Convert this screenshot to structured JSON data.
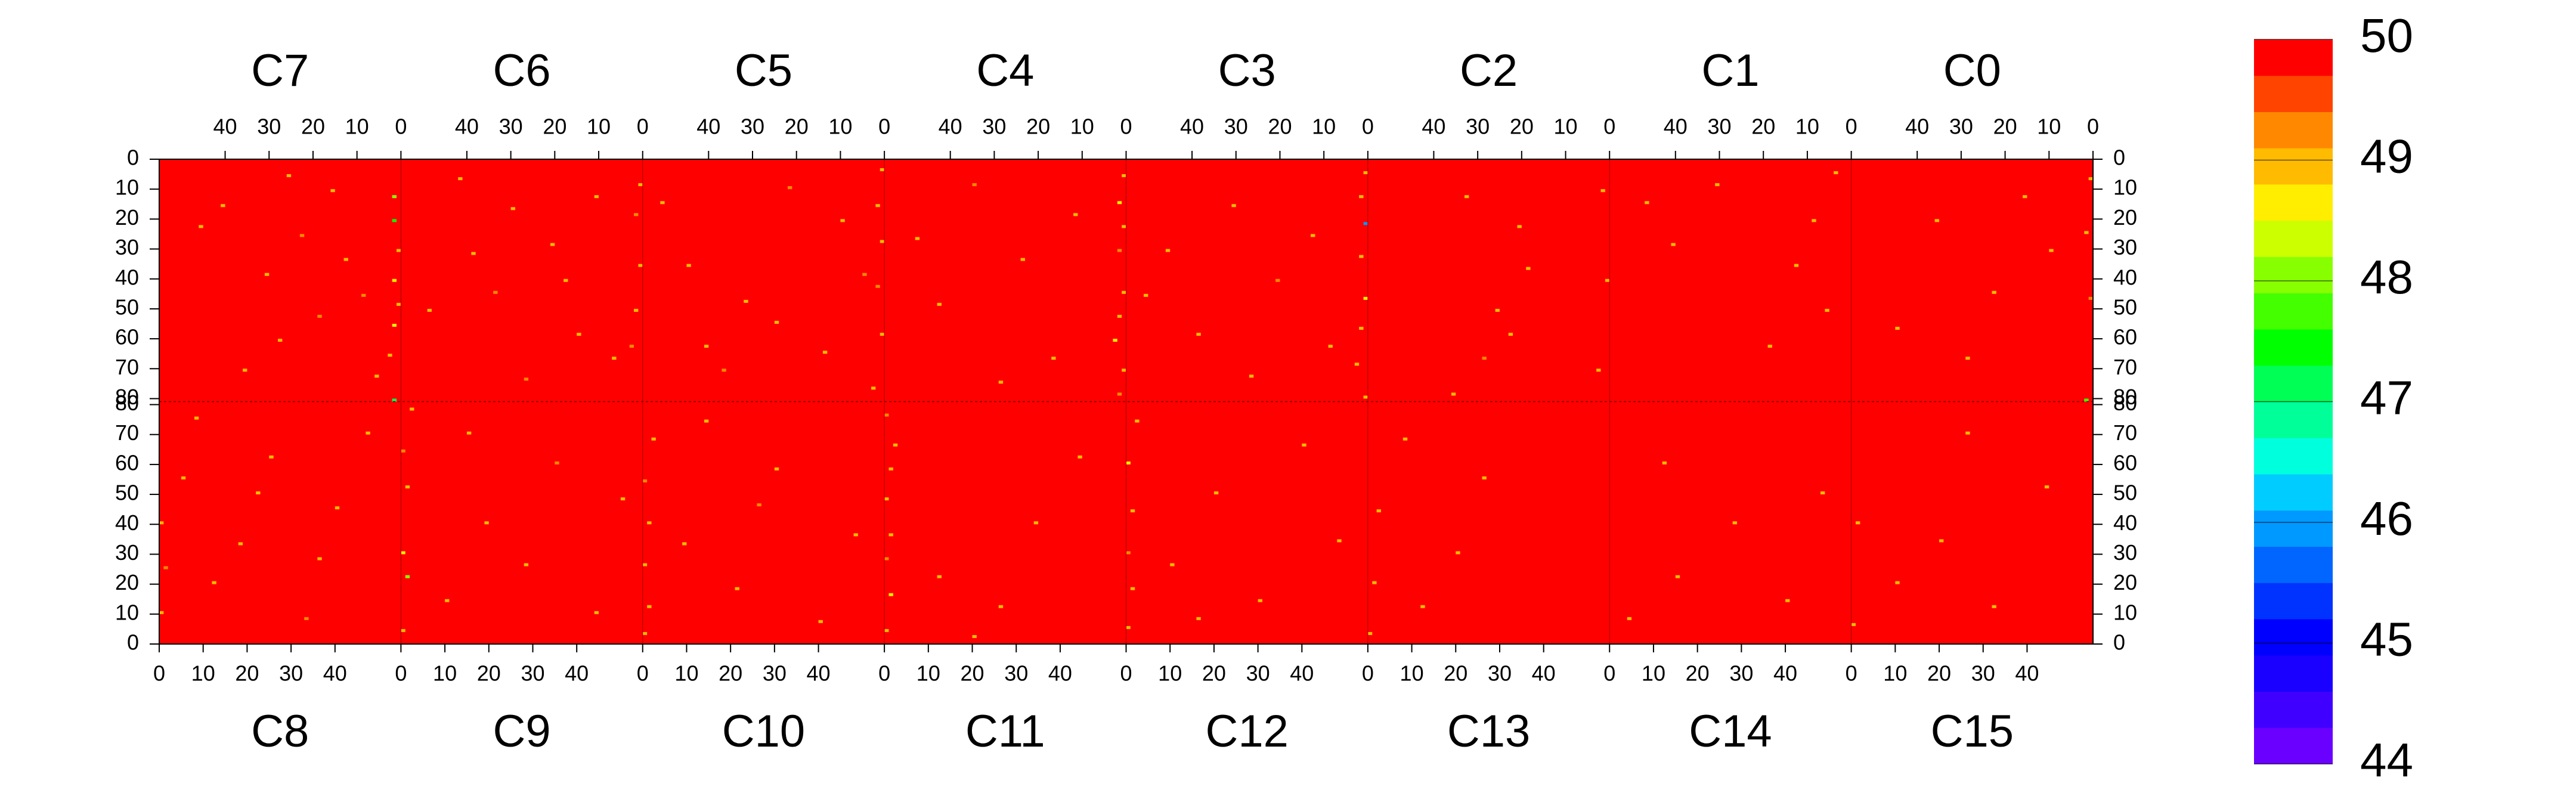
{
  "chart_data": {
    "type": "heatmap",
    "fill_value": 50,
    "xlim": [
      0,
      55
    ],
    "xticks": [
      0,
      10,
      20,
      30,
      40
    ],
    "ylim": [
      0,
      81
    ],
    "yticks": [
      0,
      10,
      20,
      30,
      40,
      50,
      60,
      70,
      80
    ],
    "zlim": [
      44,
      50
    ],
    "zticks": [
      44,
      45,
      46,
      47,
      48,
      49,
      50
    ],
    "colorscale": [
      "#6a00ff",
      "#3f00ff",
      "#1a00ff",
      "#0000ff",
      "#0033ff",
      "#0066ff",
      "#0099ff",
      "#00ccff",
      "#00ffdd",
      "#00ff99",
      "#00ff55",
      "#00ff00",
      "#44ff00",
      "#88ff00",
      "#ccff00",
      "#ffee00",
      "#ffbb00",
      "#ff8800",
      "#ff4400",
      "#ff0000"
    ],
    "top_chips": [
      {
        "name": "C7",
        "cells": [
          [
            1,
            12,
            48
          ],
          [
            1,
            20,
            47.5
          ],
          [
            0,
            30,
            49
          ],
          [
            1,
            40,
            48.6
          ],
          [
            0,
            48,
            49
          ],
          [
            1,
            55,
            48.8
          ],
          [
            1,
            80,
            47.2
          ],
          [
            2,
            65,
            49
          ],
          [
            15,
            10,
            49
          ],
          [
            22,
            25,
            49.1
          ],
          [
            30,
            38,
            49
          ],
          [
            8,
            45,
            49.2
          ],
          [
            40,
            15,
            49
          ],
          [
            27,
            60,
            49
          ],
          [
            35,
            70,
            48.9
          ],
          [
            12,
            33,
            49
          ],
          [
            18,
            52,
            49.3
          ],
          [
            45,
            22,
            49
          ],
          [
            5,
            72,
            49
          ],
          [
            25,
            5,
            49
          ]
        ]
      },
      {
        "name": "C6",
        "cells": [
          [
            0,
            8,
            49
          ],
          [
            1,
            18,
            49.1
          ],
          [
            0,
            35,
            48.9
          ],
          [
            1,
            50,
            49
          ],
          [
            2,
            62,
            49.2
          ],
          [
            10,
            12,
            49
          ],
          [
            20,
            28,
            49
          ],
          [
            33,
            44,
            49.1
          ],
          [
            41,
            6,
            49
          ],
          [
            14,
            58,
            49
          ],
          [
            26,
            73,
            49.2
          ],
          [
            38,
            31,
            49
          ],
          [
            6,
            66,
            49
          ],
          [
            48,
            50,
            49
          ],
          [
            17,
            40,
            49
          ],
          [
            29,
            16,
            48.9
          ]
        ]
      },
      {
        "name": "C5",
        "cells": [
          [
            0,
            3,
            49
          ],
          [
            1,
            15,
            48.9
          ],
          [
            0,
            27,
            49
          ],
          [
            1,
            42,
            49.2
          ],
          [
            0,
            58,
            49
          ],
          [
            2,
            76,
            49
          ],
          [
            9,
            20,
            49
          ],
          [
            21,
            9,
            49.1
          ],
          [
            31,
            47,
            49
          ],
          [
            44,
            35,
            49
          ],
          [
            13,
            64,
            49
          ],
          [
            36,
            70,
            49.1
          ],
          [
            50,
            14,
            49
          ],
          [
            24,
            54,
            49
          ],
          [
            4,
            38,
            49.3
          ],
          [
            40,
            62,
            49
          ]
        ]
      },
      {
        "name": "C4",
        "cells": [
          [
            0,
            5,
            49
          ],
          [
            1,
            14,
            48.8
          ],
          [
            0,
            22,
            49
          ],
          [
            1,
            30,
            49.2
          ],
          [
            0,
            44,
            48.9
          ],
          [
            1,
            52,
            49
          ],
          [
            2,
            60,
            48.7
          ],
          [
            0,
            70,
            49
          ],
          [
            1,
            78,
            49.1
          ],
          [
            11,
            18,
            49
          ],
          [
            23,
            33,
            49
          ],
          [
            34,
            8,
            49.2
          ],
          [
            42,
            48,
            49
          ],
          [
            16,
            66,
            49
          ],
          [
            28,
            74,
            49
          ],
          [
            47,
            26,
            49
          ]
        ]
      },
      {
        "name": "C3",
        "cells": [
          [
            0,
            4,
            49
          ],
          [
            1,
            12,
            49
          ],
          [
            0,
            21,
            46
          ],
          [
            1,
            32,
            49
          ],
          [
            0,
            46,
            48.5
          ],
          [
            1,
            56,
            49
          ],
          [
            2,
            68,
            49
          ],
          [
            0,
            79,
            49
          ],
          [
            12,
            25,
            49
          ],
          [
            20,
            40,
            49.1
          ],
          [
            30,
            15,
            49
          ],
          [
            38,
            58,
            49
          ],
          [
            8,
            62,
            49
          ],
          [
            45,
            30,
            48.9
          ],
          [
            26,
            72,
            49
          ],
          [
            50,
            45,
            49
          ]
        ]
      },
      {
        "name": "C2",
        "cells": [
          [
            1,
            10,
            49
          ],
          [
            0,
            40,
            49
          ],
          [
            2,
            70,
            49
          ],
          [
            20,
            22,
            49
          ],
          [
            25,
            50,
            49
          ],
          [
            28,
            66,
            49.1
          ],
          [
            32,
            12,
            49
          ],
          [
            18,
            36,
            49
          ],
          [
            35,
            78,
            49
          ],
          [
            22,
            58,
            49
          ]
        ]
      },
      {
        "name": "C1",
        "cells": [
          [
            3,
            4,
            49
          ],
          [
            8,
            20,
            49
          ],
          [
            12,
            35,
            49
          ],
          [
            5,
            50,
            49
          ],
          [
            30,
            8,
            49
          ],
          [
            40,
            28,
            49
          ],
          [
            18,
            62,
            49
          ],
          [
            46,
            14,
            49
          ]
        ]
      },
      {
        "name": "C0",
        "cells": [
          [
            0,
            6,
            49
          ],
          [
            1,
            24,
            49
          ],
          [
            0,
            46,
            49.1
          ],
          [
            1,
            80,
            47.8
          ],
          [
            9,
            30,
            49
          ],
          [
            15,
            12,
            49
          ],
          [
            22,
            44,
            49
          ],
          [
            35,
            20,
            49
          ],
          [
            44,
            56,
            49
          ],
          [
            28,
            66,
            49
          ]
        ]
      }
    ],
    "bottom_chips": [
      {
        "name": "C8",
        "cells": [
          [
            0,
            10,
            49
          ],
          [
            1,
            25,
            49.2
          ],
          [
            0,
            40,
            48.9
          ],
          [
            5,
            55,
            49
          ],
          [
            12,
            20,
            49
          ],
          [
            18,
            33,
            49
          ],
          [
            25,
            62,
            49
          ],
          [
            33,
            8,
            49.1
          ],
          [
            40,
            45,
            49
          ],
          [
            47,
            70,
            49
          ],
          [
            8,
            75,
            49
          ],
          [
            22,
            50,
            49
          ],
          [
            36,
            28,
            49
          ]
        ]
      },
      {
        "name": "C9",
        "cells": [
          [
            0,
            4,
            49
          ],
          [
            1,
            22,
            48
          ],
          [
            0,
            30,
            48.8
          ],
          [
            1,
            52,
            49
          ],
          [
            0,
            64,
            49.1
          ],
          [
            2,
            78,
            49
          ],
          [
            10,
            14,
            49
          ],
          [
            19,
            40,
            49
          ],
          [
            28,
            26,
            49
          ],
          [
            35,
            60,
            49.1
          ],
          [
            44,
            10,
            49
          ],
          [
            50,
            48,
            49
          ],
          [
            15,
            70,
            49
          ]
        ]
      },
      {
        "name": "C10",
        "cells": [
          [
            0,
            3,
            49
          ],
          [
            1,
            12,
            49
          ],
          [
            0,
            26,
            48.9
          ],
          [
            1,
            40,
            49
          ],
          [
            0,
            54,
            49.2
          ],
          [
            2,
            68,
            49
          ],
          [
            9,
            33,
            49
          ],
          [
            21,
            18,
            49
          ],
          [
            30,
            58,
            49
          ],
          [
            40,
            7,
            49
          ],
          [
            48,
            36,
            49
          ],
          [
            14,
            74,
            49
          ],
          [
            26,
            46,
            49.1
          ]
        ]
      },
      {
        "name": "C11",
        "cells": [
          [
            0,
            4,
            49
          ],
          [
            1,
            16,
            48.8
          ],
          [
            0,
            28,
            49.1
          ],
          [
            1,
            36,
            49
          ],
          [
            0,
            48,
            48.9
          ],
          [
            1,
            58,
            49
          ],
          [
            2,
            66,
            49
          ],
          [
            0,
            76,
            49.2
          ],
          [
            12,
            22,
            49
          ],
          [
            20,
            2,
            49
          ],
          [
            34,
            40,
            49
          ],
          [
            44,
            62,
            49
          ],
          [
            26,
            12,
            49
          ]
        ]
      },
      {
        "name": "C12",
        "cells": [
          [
            0,
            5,
            49
          ],
          [
            1,
            18,
            49
          ],
          [
            0,
            30,
            49.1
          ],
          [
            1,
            44,
            49
          ],
          [
            0,
            60,
            48.8
          ],
          [
            2,
            74,
            49
          ],
          [
            10,
            26,
            49
          ],
          [
            20,
            50,
            49
          ],
          [
            30,
            14,
            49
          ],
          [
            40,
            66,
            49
          ],
          [
            48,
            34,
            49
          ],
          [
            16,
            8,
            49
          ]
        ]
      },
      {
        "name": "C13",
        "cells": [
          [
            0,
            3,
            49
          ],
          [
            1,
            20,
            49
          ],
          [
            2,
            44,
            49
          ],
          [
            12,
            12,
            49
          ],
          [
            20,
            30,
            49
          ],
          [
            26,
            55,
            49
          ],
          [
            8,
            68,
            49
          ]
        ]
      },
      {
        "name": "C14",
        "cells": [
          [
            4,
            8,
            49
          ],
          [
            15,
            22,
            49
          ],
          [
            28,
            40,
            49
          ],
          [
            40,
            14,
            49
          ],
          [
            12,
            60,
            49
          ],
          [
            48,
            50,
            49
          ]
        ]
      },
      {
        "name": "C15",
        "cells": [
          [
            0,
            6,
            49
          ],
          [
            1,
            40,
            49
          ],
          [
            10,
            20,
            49
          ],
          [
            20,
            34,
            49
          ],
          [
            32,
            12,
            49
          ],
          [
            44,
            52,
            49
          ],
          [
            26,
            70,
            49
          ]
        ]
      }
    ]
  }
}
